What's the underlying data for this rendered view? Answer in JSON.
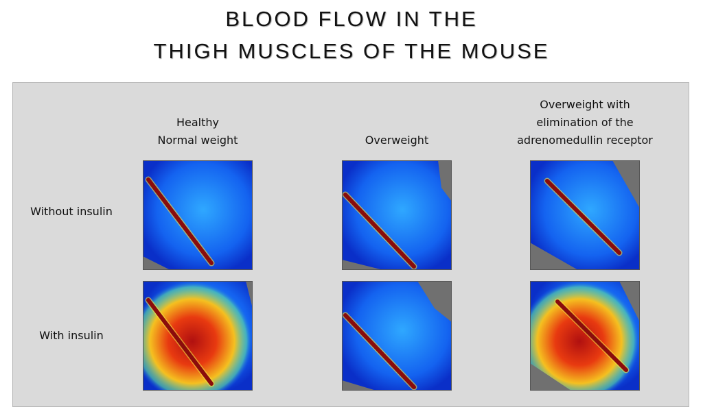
{
  "title": {
    "lines": [
      "BLOOD FLOW IN THE",
      "THIGH MUSCLES OF THE MOUSE"
    ]
  },
  "columns": [
    {
      "lines": [
        "Healthy",
        "Normal weight"
      ]
    },
    {
      "lines": [
        "Overweight"
      ]
    },
    {
      "lines": [
        "Overweight with",
        "elimination of the",
        "adrenomedullin receptor"
      ]
    }
  ],
  "rows": [
    {
      "label": "Without insulin"
    },
    {
      "label": "With insulin"
    }
  ]
}
